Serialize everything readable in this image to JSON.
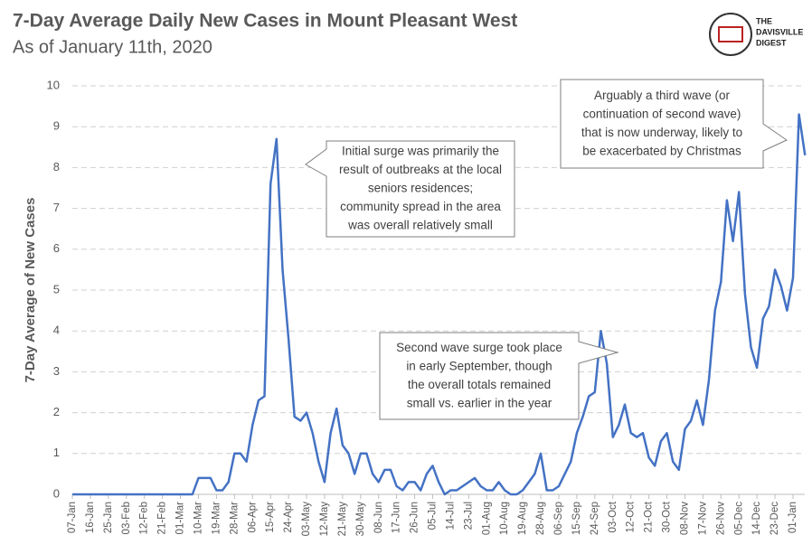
{
  "chart_data": {
    "type": "line",
    "title": "7-Day Average Daily New Cases in Mount Pleasant West",
    "subtitle": "As of January 11th, 2020",
    "ylabel": "7-Day Average of New Cases",
    "logo": [
      "THE",
      "DAVISVILLE",
      "DIGEST"
    ],
    "categories": [
      "07-Jan",
      null,
      null,
      "16-Jan",
      null,
      null,
      "25-Jan",
      null,
      null,
      "03-Feb",
      null,
      null,
      "12-Feb",
      null,
      null,
      "21-Feb",
      null,
      null,
      "01-Mar",
      null,
      null,
      "10-Mar",
      null,
      null,
      "19-Mar",
      null,
      null,
      "28-Mar",
      null,
      null,
      "06-Apr",
      null,
      null,
      "15-Apr",
      null,
      null,
      "24-Apr",
      null,
      null,
      "03-May",
      null,
      null,
      "12-May",
      null,
      null,
      "21-May",
      null,
      null,
      "30-May",
      null,
      null,
      "08-Jun",
      null,
      null,
      "17-Jun",
      null,
      null,
      "26-Jun",
      null,
      null,
      "05-Jul",
      null,
      null,
      "14-Jul",
      null,
      null,
      "23-Jul",
      null,
      null,
      "01-Aug",
      null,
      null,
      "10-Aug",
      null,
      null,
      "19-Aug",
      null,
      null,
      "28-Aug",
      null,
      null,
      "06-Sep",
      null,
      null,
      "15-Sep",
      null,
      null,
      "24-Sep",
      null,
      null,
      "03-Oct",
      null,
      null,
      "12-Oct",
      null,
      null,
      "21-Oct",
      null,
      null,
      "30-Oct",
      null,
      null,
      "08-Nov",
      null,
      null,
      "17-Nov",
      null,
      null,
      "26-Nov",
      null,
      null,
      "05-Dec",
      null,
      null,
      "14-Dec",
      null,
      null,
      "23-Dec",
      null,
      null,
      "01-Jan",
      null,
      null
    ],
    "series": [
      {
        "name": "7-Day Average",
        "color": "#4472c4",
        "values": [
          0,
          0,
          0,
          0,
          0,
          0,
          0,
          0,
          0,
          0,
          0,
          0,
          0,
          0,
          0,
          0,
          0,
          0,
          0,
          0,
          0,
          0.4,
          0.4,
          0.4,
          0.1,
          0.1,
          0.3,
          1.0,
          1.0,
          0.8,
          1.7,
          2.3,
          2.4,
          7.6,
          8.7,
          5.5,
          3.8,
          1.9,
          1.8,
          2.0,
          1.5,
          0.8,
          0.3,
          1.5,
          2.1,
          1.2,
          1.0,
          0.5,
          1.0,
          1.0,
          0.5,
          0.3,
          0.6,
          0.6,
          0.2,
          0.1,
          0.3,
          0.3,
          0.1,
          0.5,
          0.7,
          0.3,
          0.0,
          0.1,
          0.1,
          0.2,
          0.3,
          0.4,
          0.2,
          0.1,
          0.1,
          0.3,
          0.1,
          0.0,
          0.0,
          0.1,
          0.3,
          0.5,
          1.0,
          0.1,
          0.1,
          0.2,
          0.5,
          0.8,
          1.5,
          1.9,
          2.4,
          2.5,
          4.0,
          3.2,
          1.4,
          1.7,
          2.2,
          1.5,
          1.4,
          1.5,
          0.9,
          0.7,
          1.3,
          1.5,
          0.8,
          0.6,
          1.6,
          1.8,
          2.3,
          1.7,
          2.8,
          4.5,
          5.2,
          7.2,
          6.2,
          7.4,
          4.9,
          3.6,
          3.1,
          4.3,
          4.6,
          5.5,
          5.1,
          4.5,
          5.3,
          9.3,
          8.3
        ]
      }
    ],
    "ylim": [
      0,
      10
    ],
    "yticks": [
      0,
      1,
      2,
      3,
      4,
      5,
      6,
      7,
      8,
      9,
      10
    ],
    "grid": true,
    "annotations": [
      {
        "lines": [
          "Initial surge was primarily the",
          "result of outbreaks at the local",
          "seniors residences;",
          "community spread in the area",
          "was overall relatively small"
        ]
      },
      {
        "lines": [
          "Arguably a third wave (or",
          "continuation of second wave)",
          "that is now underway, likely to",
          "be exacerbated by Christmas"
        ]
      },
      {
        "lines": [
          "Second wave surge took place",
          "in early September, though",
          "the overall totals remained",
          "small vs. earlier in the year"
        ]
      }
    ]
  }
}
